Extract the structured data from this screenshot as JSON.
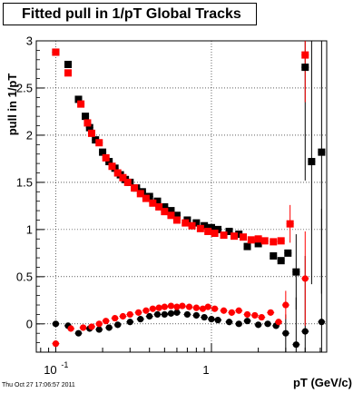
{
  "title": "Fitted pull in 1/pT  Global Tracks",
  "footer": "Thu Oct 27 17:06:57 2011",
  "chart_data": {
    "type": "scatter",
    "title": "Fitted pull in 1/pT  Global Tracks",
    "xlabel": "pT (GeV/c)",
    "ylabel": "pull in 1/pT",
    "xscale": "log",
    "xlim": [
      0.075,
      5.5
    ],
    "ylim": [
      -0.3,
      3.0
    ],
    "x_tick_labels": [
      {
        "v": 0.1,
        "label": "10",
        "sup": "-1"
      },
      {
        "v": 1,
        "label": "1",
        "sup": ""
      }
    ],
    "y_ticks": [
      0,
      0.5,
      1,
      1.5,
      2,
      2.5,
      3
    ],
    "y_tick_labels": [
      "0",
      "0.5",
      "1",
      "1.5",
      "2",
      "2.5",
      "3"
    ],
    "grid": true,
    "colors": {
      "black_series": "#000000",
      "red_series": "#ff0000"
    },
    "series": [
      {
        "marker": "square",
        "color": "#000000",
        "points": [
          [
            0.1,
            2.88
          ],
          [
            0.12,
            2.75
          ],
          [
            0.14,
            2.38
          ],
          [
            0.155,
            2.2
          ],
          [
            0.165,
            2.08
          ],
          [
            0.18,
            1.95
          ],
          [
            0.2,
            1.82
          ],
          [
            0.22,
            1.72
          ],
          [
            0.24,
            1.65
          ],
          [
            0.26,
            1.58
          ],
          [
            0.28,
            1.53
          ],
          [
            0.3,
            1.5
          ],
          [
            0.33,
            1.44
          ],
          [
            0.36,
            1.4
          ],
          [
            0.4,
            1.35
          ],
          [
            0.45,
            1.3
          ],
          [
            0.5,
            1.24
          ],
          [
            0.55,
            1.2
          ],
          [
            0.6,
            1.15
          ],
          [
            0.7,
            1.1
          ],
          [
            0.8,
            1.07
          ],
          [
            0.9,
            1.04
          ],
          [
            1.0,
            1.02
          ],
          [
            1.1,
            1.0
          ],
          [
            1.3,
            0.98
          ],
          [
            1.5,
            0.95
          ],
          [
            1.7,
            0.82
          ],
          [
            2.0,
            0.85
          ],
          [
            2.5,
            0.72
          ],
          [
            2.8,
            0.67
          ],
          [
            3.1,
            0.75
          ],
          [
            3.5,
            0.55
          ],
          [
            4.0,
            2.72
          ],
          [
            4.4,
            1.72
          ],
          [
            5.1,
            1.82
          ]
        ],
        "errors": [
          [
            3.5,
            0.4
          ],
          [
            4.0,
            1.2
          ],
          [
            4.4,
            1.3
          ],
          [
            5.1,
            1.5
          ]
        ]
      },
      {
        "marker": "square",
        "color": "#ff0000",
        "points": [
          [
            0.1,
            2.88
          ],
          [
            0.12,
            2.66
          ],
          [
            0.145,
            2.33
          ],
          [
            0.16,
            2.13
          ],
          [
            0.17,
            2.02
          ],
          [
            0.19,
            1.92
          ],
          [
            0.21,
            1.76
          ],
          [
            0.23,
            1.67
          ],
          [
            0.25,
            1.6
          ],
          [
            0.27,
            1.55
          ],
          [
            0.29,
            1.5
          ],
          [
            0.32,
            1.44
          ],
          [
            0.35,
            1.38
          ],
          [
            0.38,
            1.33
          ],
          [
            0.42,
            1.28
          ],
          [
            0.46,
            1.24
          ],
          [
            0.5,
            1.19
          ],
          [
            0.55,
            1.15
          ],
          [
            0.6,
            1.1
          ],
          [
            0.68,
            1.07
          ],
          [
            0.75,
            1.04
          ],
          [
            0.85,
            1.01
          ],
          [
            0.95,
            0.98
          ],
          [
            1.05,
            0.96
          ],
          [
            1.2,
            0.94
          ],
          [
            1.4,
            0.93
          ],
          [
            1.6,
            0.92
          ],
          [
            1.8,
            0.89
          ],
          [
            2.0,
            0.9
          ],
          [
            2.2,
            0.88
          ],
          [
            2.5,
            0.87
          ],
          [
            2.8,
            0.88
          ],
          [
            3.2,
            1.06
          ],
          [
            4.0,
            2.85
          ]
        ],
        "errors": [
          [
            3.2,
            0.2
          ],
          [
            4.0,
            0.5
          ]
        ]
      },
      {
        "marker": "circle",
        "color": "#000000",
        "points": [
          [
            0.1,
            0.0
          ],
          [
            0.12,
            -0.02
          ],
          [
            0.14,
            -0.1
          ],
          [
            0.165,
            -0.05
          ],
          [
            0.19,
            -0.06
          ],
          [
            0.22,
            -0.04
          ],
          [
            0.25,
            -0.01
          ],
          [
            0.3,
            0.02
          ],
          [
            0.35,
            0.05
          ],
          [
            0.4,
            0.08
          ],
          [
            0.45,
            0.1
          ],
          [
            0.5,
            0.1
          ],
          [
            0.55,
            0.11
          ],
          [
            0.6,
            0.12
          ],
          [
            0.7,
            0.1
          ],
          [
            0.8,
            0.09
          ],
          [
            0.9,
            0.07
          ],
          [
            1.0,
            0.05
          ],
          [
            1.1,
            0.04
          ],
          [
            1.3,
            0.02
          ],
          [
            1.5,
            0.0
          ],
          [
            1.7,
            0.03
          ],
          [
            2.0,
            -0.01
          ],
          [
            2.3,
            0.0
          ],
          [
            2.6,
            -0.02
          ],
          [
            3.0,
            -0.1
          ],
          [
            3.5,
            -0.22
          ],
          [
            4.0,
            -0.08
          ],
          [
            5.1,
            0.02
          ]
        ],
        "errors": [
          [
            3.0,
            0.2
          ],
          [
            3.5,
            0.5
          ],
          [
            4.0,
            0.8
          ],
          [
            5.1,
            1.2
          ]
        ]
      },
      {
        "marker": "circle",
        "color": "#ff0000",
        "points": [
          [
            0.1,
            -0.21
          ],
          [
            0.125,
            -0.05
          ],
          [
            0.15,
            -0.04
          ],
          [
            0.17,
            -0.03
          ],
          [
            0.19,
            0.0
          ],
          [
            0.21,
            0.03
          ],
          [
            0.24,
            0.06
          ],
          [
            0.27,
            0.08
          ],
          [
            0.3,
            0.1
          ],
          [
            0.34,
            0.12
          ],
          [
            0.38,
            0.14
          ],
          [
            0.42,
            0.16
          ],
          [
            0.46,
            0.17
          ],
          [
            0.5,
            0.18
          ],
          [
            0.55,
            0.19
          ],
          [
            0.6,
            0.18
          ],
          [
            0.65,
            0.19
          ],
          [
            0.72,
            0.18
          ],
          [
            0.8,
            0.17
          ],
          [
            0.88,
            0.16
          ],
          [
            0.95,
            0.18
          ],
          [
            1.05,
            0.16
          ],
          [
            1.2,
            0.14
          ],
          [
            1.35,
            0.12
          ],
          [
            1.5,
            0.14
          ],
          [
            1.7,
            0.1
          ],
          [
            1.9,
            0.09
          ],
          [
            2.1,
            0.07
          ],
          [
            2.4,
            0.12
          ],
          [
            2.7,
            0.02
          ],
          [
            3.0,
            0.2
          ],
          [
            4.0,
            0.48
          ]
        ],
        "errors": [
          [
            3.0,
            0.15
          ],
          [
            4.0,
            0.5
          ]
        ]
      }
    ]
  }
}
